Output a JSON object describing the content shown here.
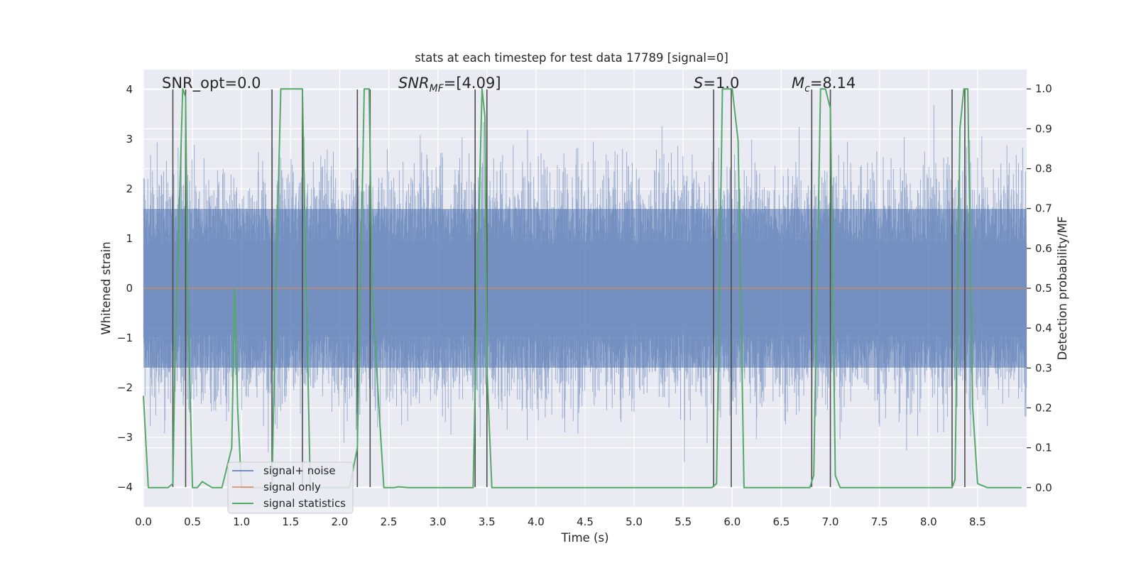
{
  "chart_data": {
    "type": "line",
    "title": "stats at each timestep for test data 17789 [signal=0]",
    "xlabel": "Time (s)",
    "ylabel": "Whitened strain",
    "ylabel_right": "Detection probability/MF",
    "xlim": [
      0.0,
      9.0
    ],
    "ylim": [
      -4.4,
      4.4
    ],
    "ylim_right": [
      -0.0485,
      1.0485
    ],
    "x_ticks": [
      "0.0",
      "0.5",
      "1.0",
      "1.5",
      "2.0",
      "2.5",
      "3.0",
      "3.5",
      "4.0",
      "4.5",
      "5.0",
      "5.5",
      "6.0",
      "6.5",
      "7.0",
      "7.5",
      "8.0",
      "8.5"
    ],
    "y_ticks": [
      "4",
      "3",
      "2",
      "1",
      "0",
      "−1",
      "−2",
      "−3",
      "−4"
    ],
    "y_right_ticks": [
      "1.0",
      "0.9",
      "0.8",
      "0.7",
      "0.6",
      "0.5",
      "0.4",
      "0.3",
      "0.2",
      "0.1",
      "0.0"
    ],
    "grid": true,
    "legend_position": "lower-left",
    "annotations": {
      "snr_opt": "SNR_opt=0.0",
      "snr_mf_main": "SNR",
      "snr_mf_sub": "MF",
      "snr_mf_rest": "=[4.09]",
      "s_main": "S",
      "s_rest": "=1.0",
      "mc_main": "M",
      "mc_sub": "c",
      "mc_rest": "=8.14"
    },
    "vertical_markers": [
      0.3,
      0.43,
      1.31,
      1.62,
      2.18,
      2.31,
      3.38,
      3.5,
      5.81,
      5.99,
      6.81,
      7.0,
      8.24,
      8.37
    ],
    "series": [
      {
        "name": "signal+ noise",
        "color": "#4c72b0",
        "axis": "left",
        "noise_envelope": {
          "core_abs": 1.6,
          "peak_abs": 4.0
        }
      },
      {
        "name": "signal only",
        "color": "#dd8452",
        "axis": "left",
        "values_constant": 0.0
      },
      {
        "name": "signal statistics",
        "color": "#55a868",
        "axis": "right",
        "x": [
          0.0,
          0.05,
          0.15,
          0.25,
          0.3,
          0.32,
          0.4,
          0.43,
          0.45,
          0.5,
          0.55,
          0.6,
          0.7,
          0.8,
          0.9,
          0.93,
          0.96,
          1.0,
          1.05,
          1.1,
          1.2,
          1.31,
          1.35,
          1.4,
          1.5,
          1.6,
          1.62,
          1.65,
          1.7,
          2.0,
          2.1,
          2.18,
          2.25,
          2.3,
          2.33,
          2.4,
          2.45,
          2.55,
          2.6,
          2.7,
          3.3,
          3.36,
          3.4,
          3.45,
          3.48,
          3.5,
          3.55,
          3.6,
          4.0,
          5.5,
          5.79,
          5.84,
          5.9,
          5.95,
          6.0,
          6.06,
          6.12,
          6.2,
          6.3,
          6.4,
          6.7,
          6.79,
          6.83,
          6.9,
          6.95,
          7.0,
          7.05,
          7.1,
          7.2,
          7.6,
          8.2,
          8.24,
          8.27,
          8.32,
          8.36,
          8.4,
          8.45,
          8.5,
          8.6,
          8.95
        ],
        "y": [
          0.23,
          0.0,
          0.0,
          0.0,
          0.01,
          0.3,
          1.0,
          0.98,
          0.5,
          0.0,
          0.0,
          0.015,
          0.0,
          0.0,
          0.1,
          0.5,
          0.2,
          0.0,
          0.0,
          0.0,
          0.0,
          0.0,
          0.5,
          1.0,
          1.0,
          1.0,
          1.0,
          0.6,
          0.0,
          0.0,
          0.0,
          0.1,
          1.0,
          1.0,
          0.5,
          0.2,
          0.0,
          0.0,
          0.002,
          0.0,
          0.0,
          0.0,
          0.5,
          1.0,
          0.93,
          0.3,
          0.0,
          0.0,
          0.0,
          0.0,
          0.0,
          0.01,
          1.0,
          1.0,
          1.0,
          0.87,
          0.0,
          0.0,
          0.0,
          0.0,
          0.0,
          0.0,
          0.03,
          1.0,
          1.0,
          0.95,
          0.03,
          0.0,
          0.0,
          0.0,
          0.0,
          0.0,
          0.02,
          0.9,
          1.0,
          1.0,
          0.2,
          0.01,
          0.0,
          0.0
        ]
      }
    ]
  }
}
